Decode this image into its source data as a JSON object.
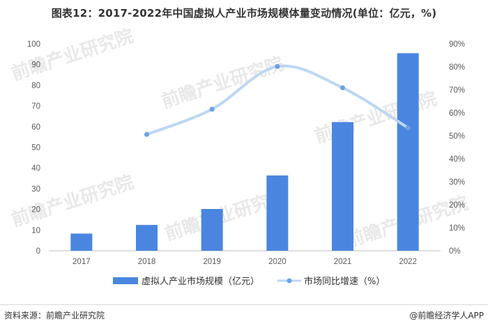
{
  "title": "图表12：2017-2022年中国虚拟人产业市场规模体量变动情况(单位：亿元，%)",
  "source_left": "资料来源：前瞻产业研究院",
  "source_right": "@前瞻经济学人APP",
  "watermark": "前瞻产业研究院",
  "colors": {
    "bar": "#4a86e0",
    "line": "#bcd7f3",
    "marker": "#6f9fe2"
  },
  "chart_data": {
    "type": "bar",
    "categories": [
      "2017",
      "2018",
      "2019",
      "2020",
      "2021",
      "2022"
    ],
    "series": [
      {
        "name": "虚拟人产业市场规模（亿元）",
        "type": "bar",
        "axis": "left",
        "values": [
          8.3,
          12.5,
          20.2,
          36.4,
          62.2,
          95.5
        ]
      },
      {
        "name": "市场同比增速（%）",
        "type": "line",
        "axis": "right",
        "values": [
          null,
          50.6,
          61.6,
          80.2,
          70.9,
          53.5
        ]
      }
    ],
    "y_left": {
      "min": 0,
      "max": 100,
      "ticks": [
        "0",
        "10",
        "20",
        "30",
        "40",
        "50",
        "60",
        "70",
        "80",
        "90",
        "100"
      ]
    },
    "y_right": {
      "min": 0,
      "max": 90,
      "ticks": [
        "0%",
        "10%",
        "20%",
        "30%",
        "40%",
        "50%",
        "60%",
        "70%",
        "80%",
        "90%"
      ]
    },
    "legend_position": "bottom",
    "grid": false
  }
}
